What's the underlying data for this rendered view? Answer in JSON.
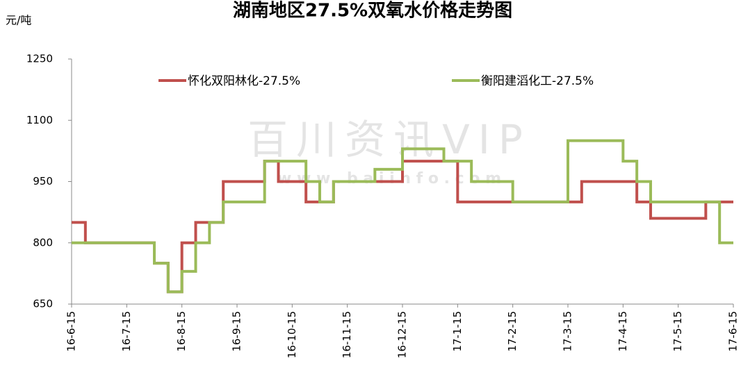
{
  "chart_data": {
    "type": "line",
    "step": true,
    "title": "湖南地区27.5%双氧水价格走势图",
    "y_label": "元/吨",
    "watermark": [
      "百川资讯VIP",
      "w w w . b a i i n f o . c o m"
    ],
    "categories": [
      "16-6-15",
      null,
      null,
      null,
      "16-7-15",
      null,
      null,
      null,
      "16-8-15",
      null,
      null,
      null,
      "16-9-15",
      null,
      null,
      null,
      "16-10-15",
      null,
      null,
      null,
      "16-11-15",
      null,
      null,
      null,
      "16-12-15",
      null,
      null,
      null,
      "17-1-15",
      null,
      null,
      null,
      "17-2-15",
      null,
      null,
      null,
      "17-3-15",
      null,
      null,
      null,
      "17-4-15",
      null,
      null,
      null,
      "17-5-15",
      null,
      null,
      null,
      "17-6-15"
    ],
    "series": [
      {
        "name": "怀化双阳林化-27.5%",
        "color": "#c0504d",
        "values": [
          850,
          800,
          800,
          800,
          800,
          800,
          750,
          680,
          800,
          850,
          850,
          950,
          950,
          950,
          1000,
          950,
          950,
          900,
          900,
          950,
          950,
          950,
          950,
          950,
          1000,
          1000,
          1000,
          1000,
          900,
          900,
          900,
          900,
          900,
          900,
          900,
          900,
          900,
          950,
          950,
          950,
          950,
          900,
          860,
          860,
          860,
          860,
          900,
          900,
          900
        ]
      },
      {
        "name": "衡阳建滔化工-27.5%",
        "color": "#9bbb59",
        "values": [
          800,
          800,
          800,
          800,
          800,
          800,
          750,
          680,
          730,
          800,
          850,
          900,
          900,
          900,
          1000,
          1000,
          1000,
          950,
          900,
          950,
          950,
          950,
          980,
          980,
          1030,
          1030,
          1030,
          1000,
          1000,
          950,
          950,
          950,
          900,
          900,
          900,
          900,
          1050,
          1050,
          1050,
          1050,
          1000,
          950,
          900,
          900,
          900,
          900,
          900,
          800,
          800
        ]
      }
    ],
    "ylim": [
      650,
      1250
    ],
    "yticks": [
      650,
      800,
      950,
      1100,
      1250
    ],
    "grid": false
  }
}
